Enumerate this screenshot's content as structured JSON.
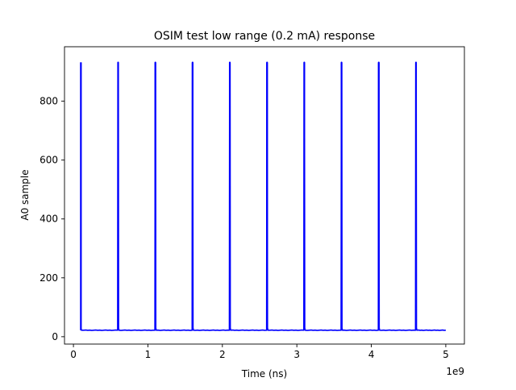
{
  "chart_data": {
    "type": "line",
    "title": "OSIM test low range (0.2 mA) response",
    "xlabel": "Time (ns)",
    "ylabel": "A0 sample",
    "x_offset_label": "1e9",
    "xlim": [
      -0.12,
      5.25
    ],
    "ylim": [
      -25,
      985
    ],
    "x_ticks": [
      0,
      1,
      2,
      3,
      4,
      5
    ],
    "x_tick_labels": [
      "0",
      "1",
      "2",
      "3",
      "4",
      "5"
    ],
    "y_ticks": [
      0,
      200,
      400,
      600,
      800
    ],
    "y_tick_labels": [
      "0",
      "200",
      "400",
      "600",
      "800"
    ],
    "grid": false,
    "legend": "none",
    "series": [
      {
        "color": "#0000ff",
        "baseline": 22,
        "x_start": 0.1,
        "x_end": 5.0,
        "pulses": [
          {
            "x": 0.1,
            "peak": 932
          },
          {
            "x": 0.6,
            "peak": 932
          },
          {
            "x": 1.1,
            "peak": 932
          },
          {
            "x": 1.6,
            "peak": 932
          },
          {
            "x": 2.1,
            "peak": 932
          },
          {
            "x": 2.6,
            "peak": 932
          },
          {
            "x": 3.1,
            "peak": 932
          },
          {
            "x": 3.6,
            "peak": 932
          },
          {
            "x": 4.1,
            "peak": 932
          },
          {
            "x": 4.6,
            "peak": 932
          }
        ]
      }
    ]
  }
}
